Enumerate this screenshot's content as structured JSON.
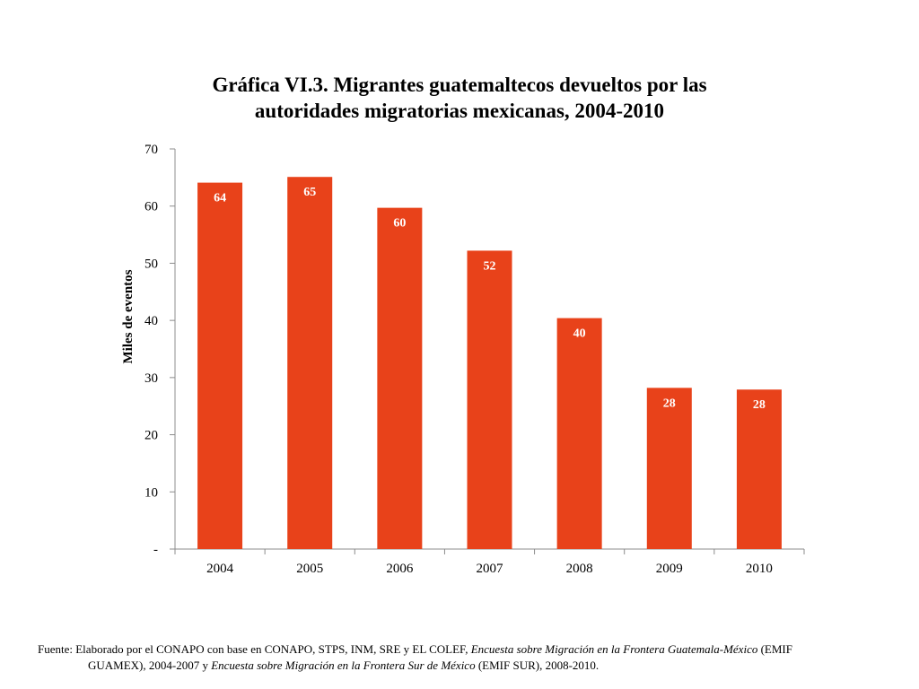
{
  "chart_data": {
    "type": "bar",
    "title_lines": [
      "Gráfica VI.3. Migrantes guatemaltecos devueltos por las",
      "autoridades migratorias mexicanas, 2004-2010"
    ],
    "xlabel": "",
    "ylabel": "Miles de eventos",
    "categories": [
      "2004",
      "2005",
      "2006",
      "2007",
      "2008",
      "2009",
      "2010"
    ],
    "values": [
      64.1,
      65.1,
      59.7,
      52.2,
      40.4,
      28.2,
      27.9
    ],
    "data_labels": [
      "64",
      "65",
      "60",
      "52",
      "40",
      "28",
      "28"
    ],
    "ylim": [
      0,
      70
    ],
    "yticks": [
      0,
      10,
      20,
      30,
      40,
      50,
      60,
      70
    ],
    "ytick_labels": [
      "-",
      "10",
      "20",
      "30",
      "40",
      "50",
      "60",
      "70"
    ],
    "bar_color": "#E8421A",
    "label_color": "#FFFFFF",
    "grid": false,
    "legend": "none"
  },
  "source": {
    "line1_pre": "Fuente: Elaborado por el CONAPO con base en CONAPO, STPS, INM, SRE y EL COLEF, ",
    "line1_italic": "Encuesta sobre Migración en la Frontera Guatemala-México",
    "line1_post": " (EMIF",
    "line2_pre": "GUAMEX), 2004-2007  y ",
    "line2_italic": "Encuesta sobre Migración en la Frontera Sur de México",
    "line2_post": " (EMIF SUR), 2008-2010."
  }
}
